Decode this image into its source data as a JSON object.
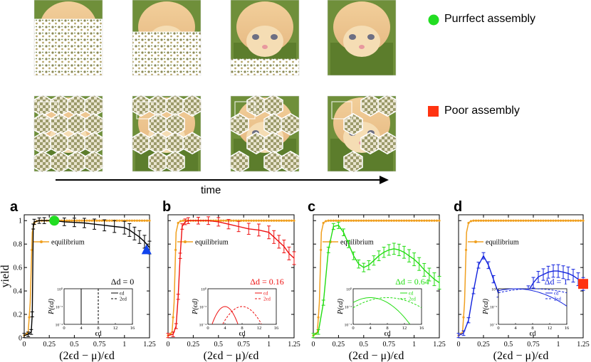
{
  "figure": {
    "legend": {
      "good_label": "Purrfect assembly",
      "poor_label": "Poor assembly",
      "good_color": "#22dd22",
      "poor_color": "#ff3311"
    },
    "time_label": "time",
    "kitten_rows": [
      {
        "name": "good-assembly-sequence",
        "frames": [
          0.25,
          0.42,
          0.78,
          1.0
        ]
      },
      {
        "name": "poor-assembly-sequence",
        "frames": [
          0.35,
          0.48,
          0.6,
          0.72
        ]
      }
    ]
  },
  "chart_data": [
    {
      "panel": "a",
      "type": "line",
      "color": "#000000",
      "delta_label": "Δd = 0",
      "xlabel": "(2ϵd − μ)/ϵd",
      "ylabel": "yield",
      "xlim": [
        0,
        1.25
      ],
      "ylim": [
        0,
        1.05
      ],
      "xticks": [
        "0",
        "0.25",
        "0.5",
        "0.75",
        "1",
        "1.25"
      ],
      "yticks": [
        "0",
        "0.2",
        "0.4",
        "0.6",
        "0.8",
        "1"
      ],
      "equilibrium_label": "equilibrium",
      "equilibrium": {
        "x": [
          0,
          0.02,
          0.04,
          0.06,
          0.08,
          0.1,
          0.12,
          0.15,
          0.2,
          0.25,
          0.3,
          0.4,
          0.5,
          0.6,
          0.7,
          0.8,
          0.9,
          1.0,
          1.1,
          1.2,
          1.25
        ],
        "y": [
          0.02,
          0.03,
          0.05,
          0.3,
          0.9,
          0.98,
          0.995,
          1,
          1,
          1,
          1,
          1,
          1,
          1,
          1,
          1,
          1,
          1,
          1,
          1,
          1
        ]
      },
      "yield_series": {
        "x": [
          0,
          0.04,
          0.07,
          0.08,
          0.09,
          0.1,
          0.15,
          0.2,
          0.3,
          0.4,
          0.5,
          0.6,
          0.7,
          0.8,
          0.9,
          1.0,
          1.05,
          1.1,
          1.15,
          1.2,
          1.25
        ],
        "y": [
          0.02,
          0.03,
          0.05,
          0.2,
          0.95,
          0.99,
          1,
          1,
          1,
          0.99,
          0.985,
          0.98,
          0.97,
          0.96,
          0.95,
          0.94,
          0.92,
          0.89,
          0.86,
          0.82,
          0.77
        ]
      },
      "marker": {
        "shape": "circle",
        "x": 0.3,
        "y": 1.0,
        "color": "#22dd22"
      },
      "marker2": {
        "shape": "triangle",
        "x": 1.22,
        "y": 0.75,
        "color": "#1144ee"
      },
      "inset": {
        "ylabel": "P(ϵd)",
        "xlabel": "ϵd",
        "xticks": [
          "0",
          "4",
          "8",
          "12",
          "16"
        ],
        "yticks": [
          "10⁰",
          "10⁻²",
          "10⁻⁴"
        ],
        "legend1": "ϵd",
        "legend2": "2ϵd",
        "type": "delta",
        "single": 4,
        "double": 8
      }
    },
    {
      "panel": "b",
      "type": "line",
      "color": "#ee1111",
      "delta_label": "Δd = 0.16",
      "xlabel": "(2ϵd − μ)/ϵd",
      "ylabel": "",
      "xlim": [
        0,
        1.25
      ],
      "ylim": [
        0,
        1.05
      ],
      "xticks": [
        "0",
        "0.25",
        "0.5",
        "0.75",
        "1",
        "1.25"
      ],
      "yticks": [],
      "equilibrium_label": "equilibrium",
      "equilibrium": {
        "x": [
          0,
          0.02,
          0.04,
          0.06,
          0.08,
          0.1,
          0.12,
          0.15,
          0.2,
          0.25,
          0.3,
          0.4,
          0.5,
          0.6,
          0.7,
          0.8,
          0.9,
          1.0,
          1.1,
          1.2,
          1.25
        ],
        "y": [
          0.02,
          0.03,
          0.05,
          0.3,
          0.9,
          0.98,
          0.995,
          1,
          1,
          1,
          1,
          1,
          1,
          1,
          1,
          1,
          1,
          1,
          1,
          1,
          1
        ]
      },
      "yield_series": {
        "x": [
          0,
          0.05,
          0.08,
          0.1,
          0.12,
          0.14,
          0.17,
          0.2,
          0.3,
          0.4,
          0.5,
          0.6,
          0.7,
          0.8,
          0.9,
          1.0,
          1.05,
          1.1,
          1.15,
          1.2,
          1.25
        ],
        "y": [
          0.02,
          0.03,
          0.1,
          0.35,
          0.7,
          0.95,
          0.99,
          1,
          1,
          1,
          0.99,
          0.97,
          0.95,
          0.93,
          0.92,
          0.9,
          0.86,
          0.82,
          0.78,
          0.72,
          0.68
        ]
      },
      "inset": {
        "ylabel": "P(ϵd)",
        "xlabel": "ϵd",
        "xticks": [
          "0",
          "4",
          "8",
          "12",
          "16"
        ],
        "yticks": [
          "10⁰",
          "10⁻²",
          "10⁻⁴"
        ],
        "legend1": "ϵd",
        "legend2": "2ϵd",
        "type": "gauss",
        "mu1": 4,
        "sd1": 1.0,
        "mu2": 8,
        "sd2": 1.5,
        "floor": 2
      }
    },
    {
      "panel": "c",
      "type": "line",
      "color": "#22dd11",
      "delta_label": "Δd = 0.64",
      "xlabel": "(2ϵd − μ)/ϵd",
      "ylabel": "",
      "xlim": [
        0,
        1.25
      ],
      "ylim": [
        0,
        1.05
      ],
      "xticks": [
        "0",
        "0.25",
        "0.5",
        "0.75",
        "1",
        "1.25"
      ],
      "yticks": [],
      "equilibrium_label": "equilibrium",
      "equilibrium": {
        "x": [
          0,
          0.02,
          0.04,
          0.06,
          0.08,
          0.1,
          0.12,
          0.15,
          0.2,
          0.25,
          0.3,
          0.4,
          0.5,
          0.6,
          0.7,
          0.8,
          0.9,
          1.0,
          1.1,
          1.2,
          1.25
        ],
        "y": [
          0.02,
          0.03,
          0.05,
          0.3,
          0.9,
          0.98,
          0.995,
          1,
          1,
          1,
          1,
          1,
          1,
          1,
          1,
          1,
          1,
          1,
          1,
          1,
          1
        ]
      },
      "yield_series": {
        "x": [
          0,
          0.05,
          0.1,
          0.15,
          0.2,
          0.25,
          0.3,
          0.35,
          0.4,
          0.45,
          0.5,
          0.55,
          0.6,
          0.65,
          0.7,
          0.75,
          0.8,
          0.85,
          0.9,
          0.95,
          1.0,
          1.05,
          1.1,
          1.15,
          1.2,
          1.25
        ],
        "y": [
          0.02,
          0.05,
          0.3,
          0.75,
          0.95,
          0.96,
          0.9,
          0.8,
          0.7,
          0.63,
          0.6,
          0.62,
          0.66,
          0.7,
          0.73,
          0.75,
          0.76,
          0.75,
          0.73,
          0.7,
          0.67,
          0.63,
          0.58,
          0.54,
          0.5,
          0.47
        ]
      },
      "inset": {
        "ylabel": "P(ϵd)",
        "xlabel": "ϵd",
        "xticks": [
          "0",
          "4",
          "8",
          "12",
          "16"
        ],
        "yticks": [
          "10⁰",
          "10⁻²",
          "10⁻⁴"
        ],
        "legend1": "ϵd",
        "legend2": "2ϵd",
        "type": "gauss",
        "mu1": 4,
        "sd1": 2.5,
        "mu2": 8,
        "sd2": 3.5,
        "floor": 1
      }
    },
    {
      "panel": "d",
      "type": "line",
      "color": "#1122dd",
      "delta_label": "Δd = 1",
      "xlabel": "(2ϵd − μ)/ϵd",
      "ylabel": "",
      "xlim": [
        0,
        1.25
      ],
      "ylim": [
        0,
        1.05
      ],
      "xticks": [
        "0",
        "0.25",
        "0.5",
        "0.75",
        "1",
        "1.25"
      ],
      "yticks": [],
      "equilibrium_label": "equilibrium",
      "equilibrium": {
        "x": [
          0,
          0.02,
          0.04,
          0.06,
          0.08,
          0.1,
          0.12,
          0.15,
          0.2,
          0.25,
          0.3,
          0.4,
          0.5,
          0.6,
          0.7,
          0.8,
          0.9,
          1.0,
          1.1,
          1.2,
          1.25
        ],
        "y": [
          0.02,
          0.03,
          0.05,
          0.3,
          0.9,
          0.98,
          0.995,
          1,
          1,
          1,
          1,
          1,
          1,
          1,
          1,
          1,
          1,
          1,
          1,
          1,
          1
        ]
      },
      "yield_series": {
        "x": [
          0,
          0.05,
          0.1,
          0.15,
          0.2,
          0.25,
          0.3,
          0.35,
          0.4,
          0.45,
          0.5,
          0.55,
          0.6,
          0.65,
          0.7,
          0.75,
          0.8,
          0.85,
          0.9,
          0.95,
          1.0,
          1.05,
          1.1,
          1.15,
          1.2,
          1.25
        ],
        "y": [
          0.02,
          0.04,
          0.15,
          0.4,
          0.62,
          0.7,
          0.62,
          0.5,
          0.38,
          0.28,
          0.24,
          0.23,
          0.26,
          0.32,
          0.4,
          0.47,
          0.52,
          0.54,
          0.56,
          0.57,
          0.57,
          0.56,
          0.55,
          0.53,
          0.5,
          0.46
        ]
      },
      "marker": {
        "shape": "square",
        "x": 1.25,
        "y": 0.46,
        "color": "#ff3311"
      },
      "inset": {
        "ylabel": "P(ϵd)",
        "xlabel": "ϵd",
        "xticks": [
          "0",
          "4",
          "8",
          "12",
          "16"
        ],
        "yticks": [
          "10⁰",
          "10⁻²",
          "10⁻⁴"
        ],
        "legend1": "ϵd",
        "legend2": "2ϵd",
        "type": "gauss",
        "mu1": 4,
        "sd1": 4.0,
        "mu2": 8,
        "sd2": 5.5,
        "floor": 0
      }
    }
  ]
}
